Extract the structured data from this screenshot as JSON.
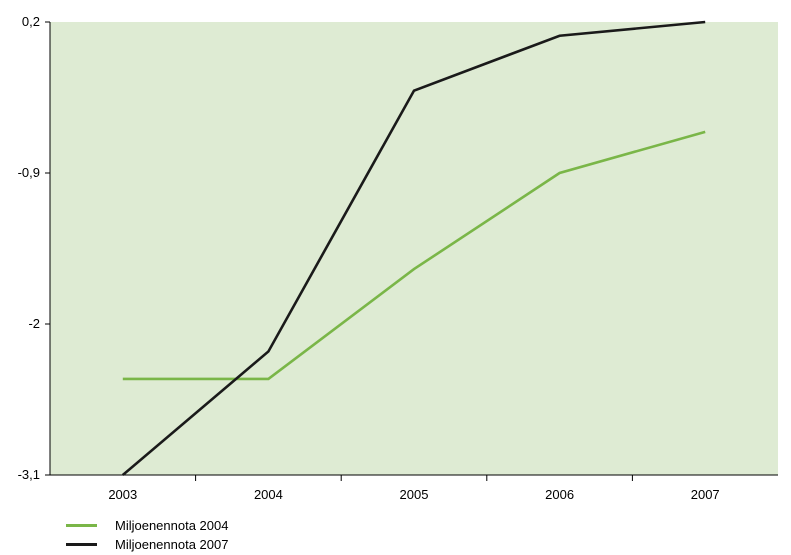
{
  "chart_data": {
    "type": "line",
    "categories": [
      "2003",
      "2004",
      "2005",
      "2006",
      "2007"
    ],
    "series": [
      {
        "name": "Miljoenennota 2004",
        "color": "#7ab648",
        "values": [
          -2.4,
          -2.4,
          -1.6,
          -0.9,
          -0.6
        ]
      },
      {
        "name": "Miljoenennota 2007",
        "color": "#1a1a1a",
        "values": [
          -3.1,
          -2.2,
          -0.3,
          0.1,
          0.2
        ]
      }
    ],
    "yticks": [
      "0,2",
      "-0,9",
      "-2",
      "-3,1"
    ],
    "ytick_values": [
      0.2,
      -0.9,
      -2,
      -3.1
    ],
    "ylim": [
      -3.1,
      0.2
    ],
    "plot_background": "#deebd3",
    "legend_position": "bottom-left",
    "grid": false
  }
}
